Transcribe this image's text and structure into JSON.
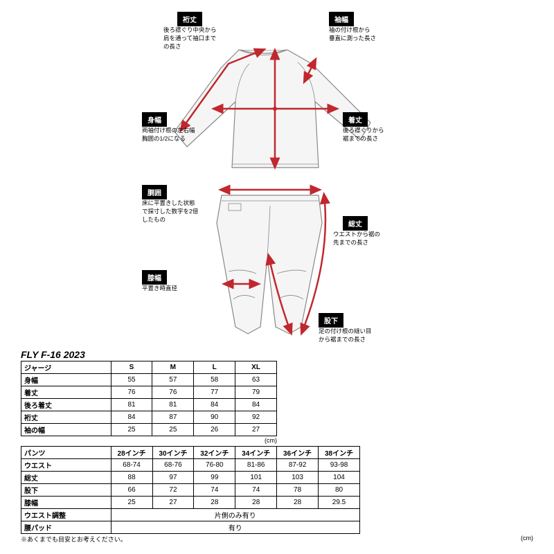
{
  "diagram": {
    "labels": {
      "yukitake": {
        "title": "裄丈",
        "desc": "後ろ襟ぐり中央から\n肩を通って袖口まで\nの長さ"
      },
      "sodehaba": {
        "title": "袖幅",
        "desc": "袖の付け根から\n垂直に測った長さ"
      },
      "mihaba": {
        "title": "身幅",
        "desc": "両袖付け根の左右幅\n胸囲の1/2になる"
      },
      "kitake": {
        "title": "着丈",
        "desc": "後ろ襟ぐりから\n裾までの長さ"
      },
      "doui": {
        "title": "胴囲",
        "desc": "床に平置きした状態\nで採寸した数字を2倍\nしたもの"
      },
      "soutake": {
        "title": "総丈",
        "desc": "ウエストから裾の\n先までの長さ"
      },
      "hizahaba": {
        "title": "膝幅",
        "desc": "平置き時直径"
      },
      "matashita": {
        "title": "股下",
        "desc": "足の付け根の縫い目\nから裾までの長さ"
      }
    }
  },
  "product_title": "FLY F-16 2023",
  "jersey_table": {
    "header_label": "ジャージ",
    "sizes": [
      "S",
      "M",
      "L",
      "XL"
    ],
    "rows": [
      {
        "label": "身幅",
        "values": [
          "55",
          "57",
          "58",
          "63"
        ]
      },
      {
        "label": "着丈",
        "values": [
          "76",
          "76",
          "77",
          "79"
        ]
      },
      {
        "label": "後ろ着丈",
        "values": [
          "81",
          "81",
          "84",
          "84"
        ]
      },
      {
        "label": "裄丈",
        "values": [
          "84",
          "87",
          "90",
          "92"
        ]
      },
      {
        "label": "袖の幅",
        "values": [
          "25",
          "25",
          "26",
          "27"
        ]
      }
    ],
    "unit": "(cm)",
    "col_label_w": 130,
    "col_data_w": 60
  },
  "pants_table": {
    "header_label": "パンツ",
    "sizes": [
      "28インチ",
      "30インチ",
      "32インチ",
      "34インチ",
      "36インチ",
      "38インチ"
    ],
    "rows": [
      {
        "label": "ウエスト",
        "values": [
          "68-74",
          "68-76",
          "76-80",
          "81-86",
          "87-92",
          "93-98"
        ]
      },
      {
        "label": "総丈",
        "values": [
          "88",
          "97",
          "99",
          "101",
          "103",
          "104"
        ]
      },
      {
        "label": "股下",
        "values": [
          "66",
          "72",
          "74",
          "74",
          "78",
          "80"
        ]
      },
      {
        "label": "膝幅",
        "values": [
          "25",
          "27",
          "28",
          "28",
          "28",
          "29.5"
        ]
      }
    ],
    "span_rows": [
      {
        "label": "ウエスト調整",
        "value": "片側のみ有り"
      },
      {
        "label": "腰パッド",
        "value": "有り"
      }
    ],
    "unit": "(cm)",
    "col_label_w": 130,
    "col_data_w": 60
  },
  "note": "※あくまでも目安とお考えください。",
  "colors": {
    "arrow": "#c1272d",
    "garment_fill": "#f5f5f5",
    "garment_stroke": "#888888",
    "label_bg": "#000000",
    "label_fg": "#ffffff"
  }
}
